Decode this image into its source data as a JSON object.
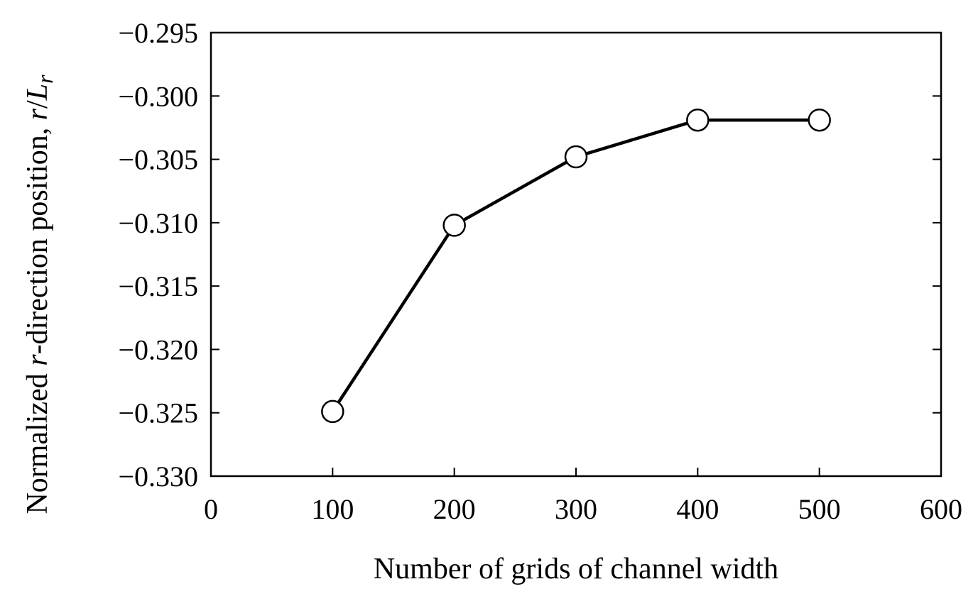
{
  "chart_data": {
    "type": "line",
    "title": "",
    "xlabel": "Number of grids of channel width",
    "ylabel": {
      "prefix": "Normalized ",
      "var": "r",
      "middle": "-direction position, ",
      "num": "r",
      "slash": "/",
      "den": "L",
      "den_sub": "r"
    },
    "xlim": [
      0,
      600
    ],
    "ylim": [
      -0.33,
      -0.295
    ],
    "x_ticks": [
      0,
      100,
      200,
      300,
      400,
      500,
      600
    ],
    "x_tick_labels": [
      "0",
      "100",
      "200",
      "300",
      "400",
      "500",
      "600"
    ],
    "y_ticks": [
      -0.295,
      -0.3,
      -0.305,
      -0.31,
      -0.315,
      -0.32,
      -0.325,
      -0.33
    ],
    "y_tick_labels": [
      "−0.295",
      "−0.300",
      "−0.305",
      "−0.310",
      "−0.315",
      "−0.320",
      "−0.325",
      "−0.330"
    ],
    "grid": false,
    "legend": "none",
    "series": [
      {
        "x": [
          100,
          200,
          300,
          400,
          500
        ],
        "values": [
          -0.3249,
          -0.3102,
          -0.3048,
          -0.3019,
          -0.3019
        ],
        "marker": "open-circle",
        "color": "#000000"
      }
    ]
  }
}
